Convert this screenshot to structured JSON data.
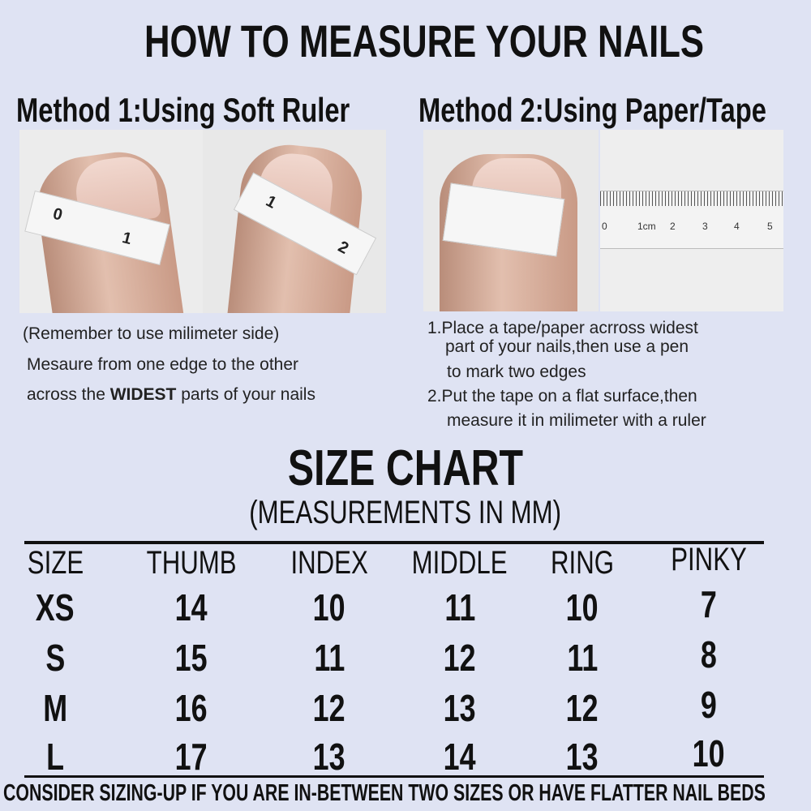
{
  "title": "HOW TO MEASURE YOUR NAILS",
  "method1": {
    "heading": "Method 1:Using Soft Ruler",
    "photo1_tape_marks": [
      "0",
      "1"
    ],
    "photo2_tape_marks": [
      "1",
      "2"
    ],
    "note": "(Remember to use milimeter side)",
    "line1": "Mesaure from one edge to the other",
    "line2_pre": "across the ",
    "line2_bold": "WIDEST",
    "line2_post": " parts of your nails"
  },
  "method2": {
    "heading": "Method 2:Using Paper/Tape",
    "ruler_labels": [
      "0",
      "1cm",
      "2",
      "3",
      "4",
      "5"
    ],
    "step1_l1": "1.Place a tape/paper acrross widest",
    "step1_l2": "part of your nails,then use a pen",
    "step1_l3": "to mark two edges",
    "step2_l1": "2.Put the tape on a flat surface,then",
    "step2_l2": "measure it in milimeter with a ruler"
  },
  "size_chart": {
    "title": "SIZE CHART",
    "subtitle": "(MEASUREMENTS IN MM)",
    "headers": [
      "SIZE",
      "THUMB",
      "INDEX",
      "MIDDLE",
      "RING",
      "PINKY"
    ],
    "rows": [
      [
        "XS",
        "14",
        "10",
        "11",
        "10",
        "7"
      ],
      [
        "S",
        "15",
        "11",
        "12",
        "11",
        "8"
      ],
      [
        "M",
        "16",
        "12",
        "13",
        "12",
        "9"
      ],
      [
        "L",
        "17",
        "13",
        "14",
        "13",
        "10"
      ]
    ]
  },
  "footer": "CONSIDER SIZING-UP IF YOU ARE IN-BETWEEN TWO SIZES OR HAVE FLATTER NAIL BEDS",
  "colors": {
    "background": "#dfe3f3",
    "text": "#111111"
  }
}
